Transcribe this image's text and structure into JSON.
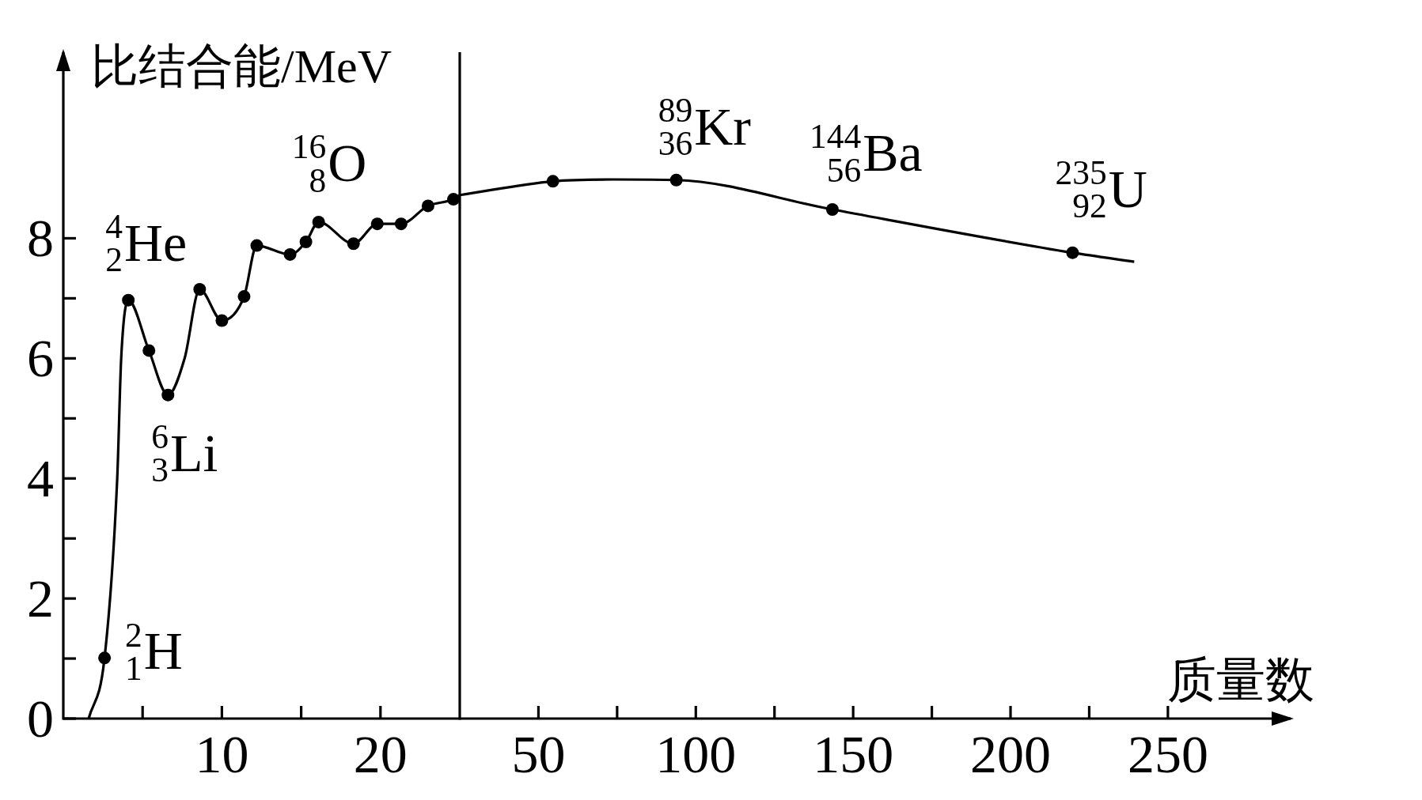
{
  "chart_data": [
    {
      "type": "line",
      "ylabel": "比结合能/MeV",
      "xlim": [
        0,
        25
      ],
      "ylim": [
        0,
        11.1
      ],
      "xticks": [
        {
          "value": 5,
          "label": null
        },
        10,
        {
          "value": 15,
          "label": null
        },
        20
      ],
      "yticks": [
        0,
        {
          "value": 1,
          "label": null
        },
        2,
        {
          "value": 3,
          "label": null
        },
        4,
        {
          "value": 5,
          "label": null
        },
        6,
        {
          "value": 7,
          "label": null
        },
        8
      ],
      "series": [
        {
          "color": "#000000",
          "marker": "none",
          "x": [
            1.6,
            2.6,
            3.4,
            3.65,
            4.1,
            5.4,
            6.6,
            7.65,
            8.6,
            10.0,
            11.4,
            12.2,
            14.3,
            15.3,
            16.1,
            18.3,
            19.8,
            21.3,
            23.0,
            24.6,
            25.0
          ],
          "values": [
            0,
            1.01,
            4.0,
            6.0,
            6.97,
            6.13,
            5.39,
            6.0,
            7.15,
            6.63,
            7.03,
            7.88,
            7.73,
            7.94,
            8.27,
            7.91,
            8.24,
            8.24,
            8.54,
            8.65,
            8.72
          ]
        },
        {
          "type": "scatter",
          "color": "#000000",
          "marker": "circle",
          "x": [
            2.6,
            4.1,
            5.4,
            6.6,
            8.6,
            10.0,
            11.4,
            12.2,
            14.3,
            15.3,
            16.1,
            18.3,
            19.8,
            21.3,
            23.0,
            24.6
          ],
          "values": [
            1.01,
            6.97,
            6.13,
            5.39,
            7.15,
            6.63,
            7.03,
            7.88,
            7.73,
            7.94,
            8.27,
            7.91,
            8.24,
            8.24,
            8.54,
            8.65
          ]
        }
      ],
      "annotations": [
        {
          "text": "$^{2}$$_{1}$H",
          "x": 2.6,
          "y": 1.01
        },
        {
          "text": "$^{4}$$_{2}$He",
          "x": 4.1,
          "y": 6.97
        },
        {
          "text": "$^{6}$$_{3}$Li",
          "x": 6.6,
          "y": 5.39
        },
        {
          "text": "$^{16}$$_{8}$O",
          "x": 16.1,
          "y": 8.27
        }
      ]
    },
    {
      "type": "line",
      "xlabel": "质量数",
      "xlim": [
        25,
        289
      ],
      "ylim": [
        0,
        11.1
      ],
      "tick_labels": "x",
      "xticks": [
        50,
        {
          "value": 75,
          "label": null
        },
        100,
        {
          "value": 125,
          "label": null
        },
        150,
        {
          "value": 175,
          "label": null
        },
        200,
        {
          "value": 225,
          "label": null
        },
        250
      ],
      "series": [
        {
          "color": "#000000",
          "marker": "none",
          "x": [
            25,
            54.6,
            73.6,
            93.8,
            143.4,
            219.7,
            239.3
          ],
          "values": [
            8.72,
            8.95,
            8.98,
            8.97,
            8.48,
            7.76,
            7.61
          ]
        },
        {
          "type": "scatter",
          "color": "#000000",
          "marker": "circle",
          "x": [
            54.6,
            93.8,
            143.4,
            219.7
          ],
          "values": [
            8.95,
            8.97,
            8.48,
            7.76
          ]
        }
      ],
      "annotations": [
        {
          "text": "$^{89}$$_{36}$Kr",
          "x": 93.8,
          "y": 8.97
        },
        {
          "text": "$^{144}$$_{56}$Ba",
          "x": 143.4,
          "y": 8.48
        },
        {
          "text": "$^{235}$$_{92}$U",
          "x": 219.7,
          "y": 7.76
        }
      ]
    }
  ]
}
